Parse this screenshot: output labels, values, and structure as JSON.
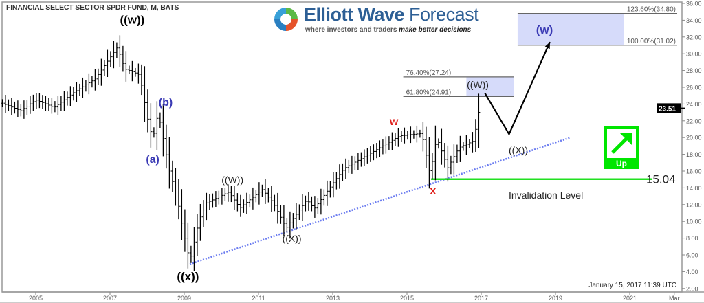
{
  "chart_data": {
    "type": "line",
    "title": "FINANCIAL SELECT SECTOR SPDR FUND, M, BATS",
    "timestamp": "January 15, 2017 11:39 UTC",
    "xticks": [
      "2005",
      "2007",
      "2009",
      "2011",
      "2013",
      "2015",
      "2017",
      "2019",
      "2021",
      "Mar"
    ],
    "xtick_years": [
      2005,
      2007,
      2009,
      2011,
      2013,
      2015,
      2017,
      2019,
      2021,
      2022.2
    ],
    "ylim": [
      2,
      36
    ],
    "yticks": [
      "2.00",
      "4.00",
      "6.00",
      "8.00",
      "10.00",
      "12.00",
      "14.00",
      "16.00",
      "18.00",
      "20.00",
      "22.00",
      "24.00",
      "26.00",
      "28.00",
      "30.00",
      "32.00",
      "34.00",
      "36.00"
    ],
    "last_price": "23.51",
    "price_path": [
      [
        2004.1,
        24.1
      ],
      [
        2004.6,
        23.2
      ],
      [
        2005.0,
        24.5
      ],
      [
        2005.5,
        23.6
      ],
      [
        2006.0,
        25.3
      ],
      [
        2006.6,
        27.0
      ],
      [
        2007.2,
        30.8
      ],
      [
        2007.4,
        28.2
      ],
      [
        2007.8,
        27.5
      ],
      [
        2008.0,
        22.5
      ],
      [
        2008.15,
        19.8
      ],
      [
        2008.3,
        23.0
      ],
      [
        2008.6,
        16.0
      ],
      [
        2008.8,
        13.0
      ],
      [
        2008.95,
        9.4
      ],
      [
        2009.15,
        5.2
      ],
      [
        2009.4,
        10.2
      ],
      [
        2009.6,
        12.2
      ],
      [
        2010.2,
        13.5
      ],
      [
        2010.5,
        11.6
      ],
      [
        2011.1,
        13.8
      ],
      [
        2011.4,
        12.2
      ],
      [
        2011.75,
        9.2
      ],
      [
        2012.3,
        12.6
      ],
      [
        2012.5,
        11.5
      ],
      [
        2013.3,
        16.3
      ],
      [
        2014.2,
        18.6
      ],
      [
        2014.8,
        20.2
      ],
      [
        2015.4,
        20.5
      ],
      [
        2015.62,
        15.6
      ],
      [
        2015.8,
        20.0
      ],
      [
        2016.1,
        16.4
      ],
      [
        2016.4,
        18.8
      ],
      [
        2016.8,
        19.6
      ],
      [
        2016.92,
        22.9
      ],
      [
        2017.0,
        23.5
      ]
    ],
    "trendline": [
      [
        2009.15,
        4.9
      ],
      [
        2019.4,
        20.0
      ]
    ],
    "invalidation": {
      "value": 15.04,
      "label_value": "15.04",
      "label": "Invalidation Level",
      "from": 2015.65,
      "to": 2021.6
    },
    "fib_zones": [
      {
        "low": 24.91,
        "high": 27.24,
        "low_label": "61.80%(24.91)",
        "high_label": "76.40%(27.24)",
        "label": "((W))",
        "box_from": 2016.6,
        "box_to": 2017.88,
        "line_from": 2014.9
      },
      {
        "low": 31.02,
        "high": 34.8,
        "low_label": "100.00%(31.02)",
        "high_label": "123.60%(34.80)",
        "label": "(w)",
        "box_from": 2017.98,
        "box_to": 2020.85,
        "line_from": 2017.98
      }
    ],
    "projection_path": [
      [
        2017.1,
        25.3
      ],
      [
        2017.75,
        20.4
      ],
      [
        2018.85,
        31.4
      ]
    ],
    "wave_labels": [
      {
        "text": "((w))",
        "year": 2007.6,
        "price": 33.9,
        "color": "#000000",
        "bold": true,
        "size": 17
      },
      {
        "text": "(b)",
        "year": 2008.5,
        "price": 24.1,
        "color": "#3b3bb5",
        "bold": true,
        "size": 16
      },
      {
        "text": "(a)",
        "year": 2008.15,
        "price": 17.3,
        "color": "#3b3bb5",
        "bold": true,
        "size": 16
      },
      {
        "text": "((x))",
        "year": 2009.1,
        "price": 3.3,
        "color": "#000000",
        "bold": true,
        "size": 17
      },
      {
        "text": "((W))",
        "year": 2010.3,
        "price": 14.9,
        "color": "#222222",
        "bold": false,
        "size": 14
      },
      {
        "text": "((X))",
        "year": 2011.9,
        "price": 7.9,
        "color": "#222222",
        "bold": false,
        "size": 14
      },
      {
        "text": "w",
        "year": 2014.65,
        "price": 21.8,
        "color": "#e0201c",
        "bold": true,
        "size": 16
      },
      {
        "text": "x",
        "year": 2015.7,
        "price": 13.6,
        "color": "#e0201c",
        "bold": true,
        "size": 16
      },
      {
        "text": "((X))",
        "year": 2018.0,
        "price": 18.4,
        "color": "#222222",
        "bold": false,
        "size": 14
      }
    ],
    "signal": {
      "label": "Up",
      "color": "#00e600"
    },
    "colors": {
      "bars": "#000000",
      "trendline": "#6b7cf0",
      "invalidation": "#22e022",
      "fib_box": "#d6dbfa",
      "axis": "#888888"
    }
  },
  "logo": {
    "name_bold": "Elliott Wave",
    "name_light": "Forecast",
    "tagline_plain": "where investors and traders",
    "tagline_emph": "make better decisions"
  }
}
